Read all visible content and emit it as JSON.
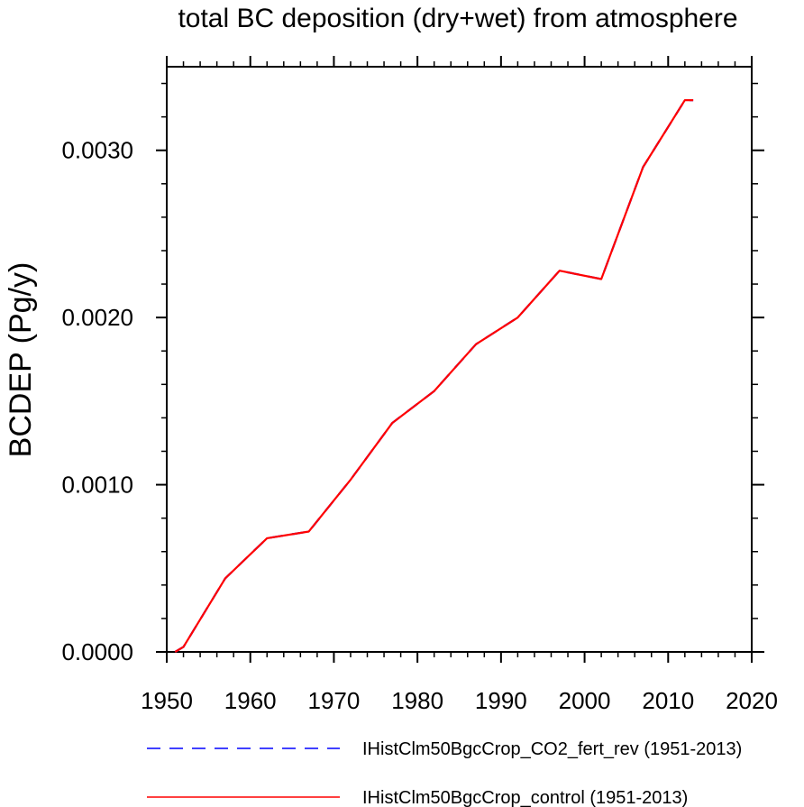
{
  "chart_data": {
    "type": "line",
    "title": "total BC deposition (dry+wet) from atmosphere",
    "xlabel": "",
    "ylabel": "BCDEP  (Pg/y)",
    "xlim": [
      1950,
      2020
    ],
    "ylim": [
      0.0,
      0.0035
    ],
    "x_ticks": [
      1950,
      1960,
      1970,
      1980,
      1990,
      2000,
      2010,
      2020
    ],
    "x_tick_labels": [
      "1950",
      "1960",
      "1970",
      "1980",
      "1990",
      "2000",
      "2010",
      "2020"
    ],
    "y_ticks": [
      0.0,
      0.001,
      0.002,
      0.003
    ],
    "y_tick_labels": [
      "0.0000",
      "0.0010",
      "0.0020",
      "0.0030"
    ],
    "grid": false,
    "legend_position": "bottom",
    "x": [
      1951,
      1952,
      1957,
      1962,
      1967,
      1972,
      1977,
      1982,
      1987,
      1992,
      1997,
      2002,
      2007,
      2012,
      2013
    ],
    "series": [
      {
        "name": "IHistClm50BgcCrop_CO2_fert_rev (1951-2013)",
        "color": "#0000ff",
        "dash": "dashed",
        "values": [
          0.0,
          3e-05,
          0.00044,
          0.00068,
          0.00072,
          0.00103,
          0.00137,
          0.00156,
          0.00184,
          0.002,
          0.00228,
          0.00223,
          0.0029,
          0.0033,
          0.0033
        ]
      },
      {
        "name": "IHistClm50BgcCrop_control (1951-2013)",
        "color": "#ff0000",
        "dash": "solid",
        "values": [
          0.0,
          3e-05,
          0.00044,
          0.00068,
          0.00072,
          0.00103,
          0.00137,
          0.00156,
          0.00184,
          0.002,
          0.00228,
          0.00223,
          0.0029,
          0.0033,
          0.0033
        ]
      }
    ]
  }
}
